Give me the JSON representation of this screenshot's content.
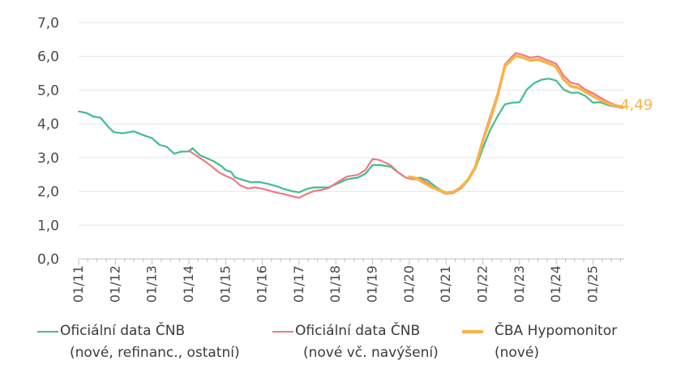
{
  "chart_data": {
    "type": "line",
    "title": "",
    "xlabel": "",
    "ylabel": "",
    "ylim": [
      0,
      7
    ],
    "y_ticks": [
      "0,0",
      "1,0",
      "2,0",
      "3,0",
      "4,0",
      "5,0",
      "6,0",
      "7,0"
    ],
    "x_ticks": [
      "01/11",
      "01/12",
      "01/13",
      "01/14",
      "01/15",
      "01/16",
      "01/17",
      "01/18",
      "01/19",
      "01/20",
      "01/21",
      "01/22",
      "01/23",
      "01/24",
      "01/25"
    ],
    "x_range": [
      "2011-01",
      "2025-10"
    ],
    "end_label": "4,49",
    "series": [
      {
        "name": "Oficiální data ČNB (nové, refinanc., ostatní)",
        "legend": [
          "Oficiální data ČNB",
          "(nové, refinanc., ostatní)"
        ],
        "color": "#3dbf8e",
        "width": 2.2,
        "points": [
          [
            2011.0,
            4.37
          ],
          [
            2011.2,
            4.33
          ],
          [
            2011.4,
            4.22
          ],
          [
            2011.6,
            4.18
          ],
          [
            2011.8,
            3.92
          ],
          [
            2011.95,
            3.76
          ],
          [
            2012.2,
            3.72
          ],
          [
            2012.5,
            3.78
          ],
          [
            2012.8,
            3.65
          ],
          [
            2013.0,
            3.58
          ],
          [
            2013.2,
            3.38
          ],
          [
            2013.4,
            3.32
          ],
          [
            2013.6,
            3.12
          ],
          [
            2013.8,
            3.18
          ],
          [
            2014.0,
            3.18
          ],
          [
            2014.1,
            3.28
          ],
          [
            2014.3,
            3.07
          ],
          [
            2014.5,
            2.98
          ],
          [
            2014.7,
            2.88
          ],
          [
            2014.9,
            2.74
          ],
          [
            2015.0,
            2.63
          ],
          [
            2015.15,
            2.58
          ],
          [
            2015.25,
            2.42
          ],
          [
            2015.5,
            2.33
          ],
          [
            2015.7,
            2.27
          ],
          [
            2015.9,
            2.28
          ],
          [
            2016.0,
            2.26
          ],
          [
            2016.2,
            2.21
          ],
          [
            2016.4,
            2.15
          ],
          [
            2016.6,
            2.07
          ],
          [
            2016.8,
            2.01
          ],
          [
            2017.0,
            1.97
          ],
          [
            2017.2,
            2.07
          ],
          [
            2017.4,
            2.12
          ],
          [
            2017.6,
            2.12
          ],
          [
            2017.8,
            2.12
          ],
          [
            2018.0,
            2.21
          ],
          [
            2018.3,
            2.36
          ],
          [
            2018.6,
            2.41
          ],
          [
            2018.8,
            2.52
          ],
          [
            2019.0,
            2.78
          ],
          [
            2019.2,
            2.78
          ],
          [
            2019.5,
            2.73
          ],
          [
            2019.7,
            2.56
          ],
          [
            2019.9,
            2.41
          ],
          [
            2020.1,
            2.36
          ],
          [
            2020.3,
            2.41
          ],
          [
            2020.5,
            2.33
          ],
          [
            2020.7,
            2.15
          ],
          [
            2020.9,
            2.01
          ],
          [
            2021.0,
            1.95
          ],
          [
            2021.2,
            1.96
          ],
          [
            2021.4,
            2.08
          ],
          [
            2021.6,
            2.32
          ],
          [
            2021.8,
            2.68
          ],
          [
            2022.0,
            3.28
          ],
          [
            2022.2,
            3.82
          ],
          [
            2022.4,
            4.22
          ],
          [
            2022.6,
            4.58
          ],
          [
            2022.8,
            4.63
          ],
          [
            2023.0,
            4.64
          ],
          [
            2023.2,
            5.02
          ],
          [
            2023.4,
            5.21
          ],
          [
            2023.6,
            5.31
          ],
          [
            2023.8,
            5.34
          ],
          [
            2024.0,
            5.28
          ],
          [
            2024.2,
            5.02
          ],
          [
            2024.4,
            4.92
          ],
          [
            2024.6,
            4.93
          ],
          [
            2024.8,
            4.82
          ],
          [
            2025.0,
            4.63
          ],
          [
            2025.2,
            4.64
          ],
          [
            2025.4,
            4.56
          ],
          [
            2025.6,
            4.51
          ],
          [
            2025.8,
            4.47
          ]
        ]
      },
      {
        "name": "Oficiální data ČNB (nové vč. navýšení)",
        "legend": [
          "Oficiální data ČNB",
          "(nové vč. navýšení)"
        ],
        "color": "#ee7a82",
        "width": 2.2,
        "points": [
          [
            2014.0,
            3.21
          ],
          [
            2014.2,
            3.06
          ],
          [
            2014.4,
            2.92
          ],
          [
            2014.6,
            2.76
          ],
          [
            2014.8,
            2.58
          ],
          [
            2015.0,
            2.46
          ],
          [
            2015.2,
            2.37
          ],
          [
            2015.4,
            2.18
          ],
          [
            2015.6,
            2.09
          ],
          [
            2015.8,
            2.12
          ],
          [
            2016.0,
            2.08
          ],
          [
            2016.2,
            2.02
          ],
          [
            2016.4,
            1.96
          ],
          [
            2016.6,
            1.92
          ],
          [
            2016.8,
            1.86
          ],
          [
            2017.0,
            1.81
          ],
          [
            2017.2,
            1.92
          ],
          [
            2017.4,
            2.01
          ],
          [
            2017.6,
            2.04
          ],
          [
            2017.8,
            2.1
          ],
          [
            2018.0,
            2.24
          ],
          [
            2018.3,
            2.44
          ],
          [
            2018.6,
            2.49
          ],
          [
            2018.8,
            2.63
          ],
          [
            2019.0,
            2.96
          ],
          [
            2019.2,
            2.93
          ],
          [
            2019.5,
            2.77
          ],
          [
            2019.7,
            2.56
          ],
          [
            2019.9,
            2.41
          ],
          [
            2020.1,
            2.36
          ],
          [
            2020.3,
            2.37
          ],
          [
            2020.5,
            2.25
          ],
          [
            2020.7,
            2.08
          ],
          [
            2020.9,
            1.97
          ],
          [
            2021.0,
            1.93
          ],
          [
            2021.2,
            1.95
          ],
          [
            2021.4,
            2.1
          ],
          [
            2021.6,
            2.33
          ],
          [
            2021.8,
            2.73
          ],
          [
            2022.0,
            3.55
          ],
          [
            2022.2,
            4.22
          ],
          [
            2022.4,
            4.89
          ],
          [
            2022.6,
            5.76
          ],
          [
            2022.8,
            6.0
          ],
          [
            2022.9,
            6.1
          ],
          [
            2023.1,
            6.04
          ],
          [
            2023.3,
            5.96
          ],
          [
            2023.5,
            6.0
          ],
          [
            2023.7,
            5.91
          ],
          [
            2023.9,
            5.83
          ],
          [
            2024.0,
            5.78
          ],
          [
            2024.2,
            5.43
          ],
          [
            2024.4,
            5.22
          ],
          [
            2024.6,
            5.17
          ],
          [
            2024.8,
            5.01
          ],
          [
            2025.0,
            4.91
          ],
          [
            2025.2,
            4.78
          ],
          [
            2025.4,
            4.66
          ],
          [
            2025.6,
            4.56
          ],
          [
            2025.8,
            4.52
          ]
        ]
      },
      {
        "name": "ČBA Hypomonitor (nové)",
        "legend": [
          "ČBA Hypomonitor",
          "(nové)"
        ],
        "color": "#f9b348",
        "width": 3.5,
        "points": [
          [
            2020.0,
            2.43
          ],
          [
            2020.2,
            2.39
          ],
          [
            2020.4,
            2.25
          ],
          [
            2020.6,
            2.13
          ],
          [
            2020.8,
            2.04
          ],
          [
            2021.0,
            1.96
          ],
          [
            2021.2,
            1.98
          ],
          [
            2021.4,
            2.12
          ],
          [
            2021.6,
            2.35
          ],
          [
            2021.8,
            2.73
          ],
          [
            2022.0,
            3.5
          ],
          [
            2022.2,
            4.12
          ],
          [
            2022.4,
            4.82
          ],
          [
            2022.6,
            5.71
          ],
          [
            2022.8,
            5.92
          ],
          [
            2022.9,
            6.02
          ],
          [
            2023.1,
            5.96
          ],
          [
            2023.3,
            5.88
          ],
          [
            2023.5,
            5.91
          ],
          [
            2023.7,
            5.83
          ],
          [
            2023.9,
            5.75
          ],
          [
            2024.0,
            5.68
          ],
          [
            2024.2,
            5.32
          ],
          [
            2024.4,
            5.11
          ],
          [
            2024.6,
            5.07
          ],
          [
            2024.8,
            4.94
          ],
          [
            2025.0,
            4.82
          ],
          [
            2025.2,
            4.71
          ],
          [
            2025.4,
            4.61
          ],
          [
            2025.6,
            4.53
          ],
          [
            2025.83,
            4.49
          ]
        ]
      }
    ]
  }
}
